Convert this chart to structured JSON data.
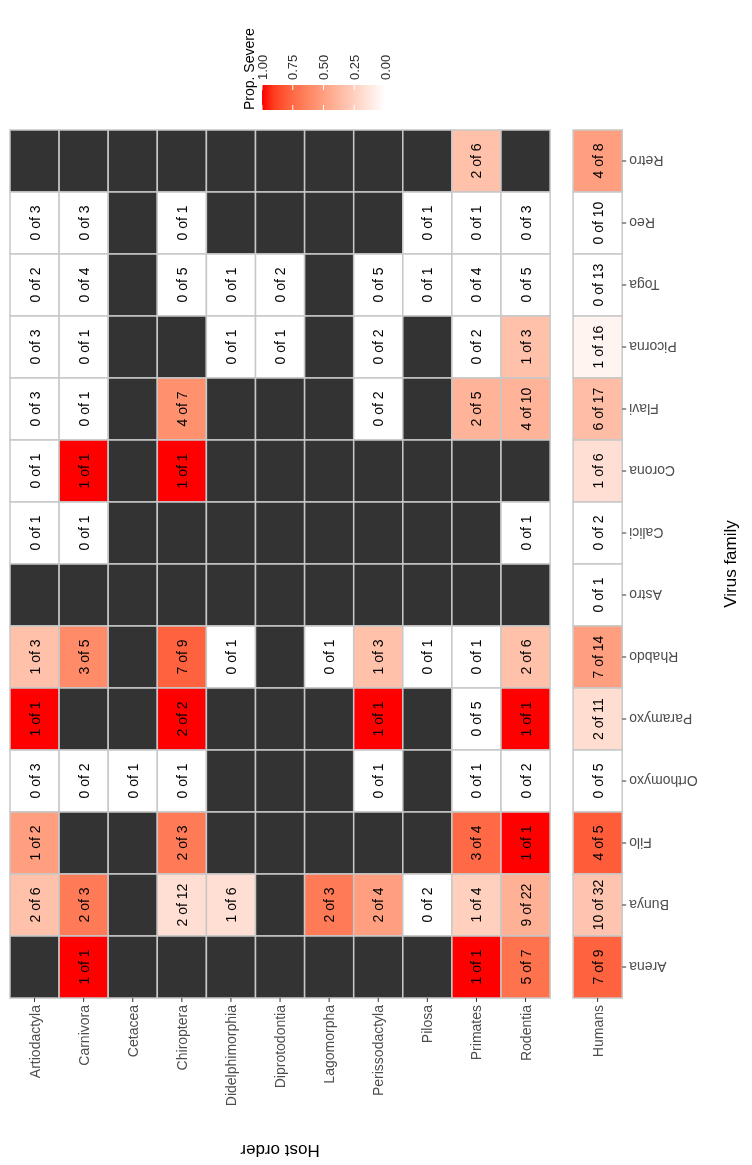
{
  "chart_data": {
    "type": "heatmap",
    "xlabel": "Host order",
    "ylabel": "Virus family",
    "clabel": "Prop. Severe",
    "clim": [
      0,
      1
    ],
    "cticks": [
      {
        "value": 0,
        "label": "0.00"
      },
      {
        "value": 0.25,
        "label": "0.25"
      },
      {
        "value": 0.5,
        "label": "0.50"
      },
      {
        "value": 0.75,
        "label": "0.75"
      },
      {
        "value": 1,
        "label": "1.00"
      }
    ],
    "categories": [
      "Artiodactyla",
      "Carnivora",
      "Cetacea",
      "Chiroptera",
      "Didelphimorphia",
      "Diprotodontia",
      "Lagomorpha",
      "Perissodactyla",
      "Pilosa",
      "Primates",
      "Rodentia",
      "Humans"
    ],
    "y_categories": [
      "Retro",
      "Reo",
      "Toga",
      "Picorna",
      "Flavi",
      "Corona",
      "Calici",
      "Astro",
      "Rhabdo",
      "Paramyxo",
      "Orthomyxo",
      "Filo",
      "Bunya",
      "Arena"
    ],
    "cells": [
      [
        null,
        null,
        null,
        null,
        null,
        null,
        null,
        null,
        null,
        0.33,
        null,
        0.5
      ],
      [
        0,
        0,
        null,
        0,
        null,
        null,
        null,
        null,
        0,
        0,
        0,
        0
      ],
      [
        0,
        0,
        null,
        0,
        0,
        0,
        null,
        0,
        0,
        0,
        0,
        0
      ],
      [
        0,
        0,
        null,
        null,
        0,
        0,
        null,
        0,
        null,
        0,
        0.33,
        0.06
      ],
      [
        0,
        0,
        null,
        0.57,
        null,
        null,
        null,
        0,
        null,
        0.4,
        0.4,
        0.35
      ],
      [
        0,
        1,
        null,
        1,
        null,
        null,
        null,
        null,
        null,
        null,
        null,
        0.17
      ],
      [
        0,
        0,
        null,
        null,
        null,
        null,
        null,
        null,
        null,
        null,
        0,
        0
      ],
      [
        null,
        null,
        null,
        null,
        null,
        null,
        null,
        null,
        null,
        null,
        null,
        0
      ],
      [
        0.33,
        0.6,
        null,
        0.78,
        0,
        null,
        0,
        0.33,
        0,
        0,
        0.33,
        0.5
      ],
      [
        1,
        null,
        null,
        1,
        null,
        null,
        null,
        1,
        null,
        0,
        1,
        0.18
      ],
      [
        0,
        0,
        0,
        0,
        null,
        null,
        null,
        0,
        null,
        0,
        0,
        0
      ],
      [
        0.5,
        null,
        null,
        0.67,
        null,
        null,
        null,
        null,
        null,
        0.75,
        1,
        0.8
      ],
      [
        0.33,
        0.67,
        null,
        0.17,
        0.17,
        null,
        0.67,
        0.5,
        0,
        0.25,
        0.41,
        0.31
      ],
      [
        null,
        1,
        null,
        null,
        null,
        null,
        null,
        null,
        null,
        1,
        0.71,
        0.78
      ]
    ],
    "cell_labels": [
      [
        null,
        null,
        null,
        null,
        null,
        null,
        null,
        null,
        null,
        "2 of 6",
        null,
        "4 of 8"
      ],
      [
        "0 of 3",
        "0 of 3",
        null,
        "0 of 1",
        null,
        null,
        null,
        null,
        "0 of 1",
        "0 of 1",
        "0 of 3",
        "0 of 10"
      ],
      [
        "0 of 2",
        "0 of 4",
        null,
        "0 of 5",
        "0 of 1",
        "0 of 2",
        null,
        "0 of 5",
        "0 of 1",
        "0 of 4",
        "0 of 5",
        "0 of 13"
      ],
      [
        "0 of 3",
        "0 of 1",
        null,
        null,
        "0 of 1",
        "0 of 1",
        null,
        "0 of 2",
        null,
        "0 of 2",
        "1 of 3",
        "1 of 16"
      ],
      [
        "0 of 3",
        "0 of 1",
        null,
        "4 of 7",
        null,
        null,
        null,
        "0 of 2",
        null,
        "2 of 5",
        "4 of 10",
        "6 of 17"
      ],
      [
        "0 of 1",
        "1 of 1",
        null,
        "1 of 1",
        null,
        null,
        null,
        null,
        null,
        null,
        null,
        "1 of 6"
      ],
      [
        "0 of 1",
        "0 of 1",
        null,
        null,
        null,
        null,
        null,
        null,
        null,
        null,
        "0 of 1",
        "0 of 2"
      ],
      [
        null,
        null,
        null,
        null,
        null,
        null,
        null,
        null,
        null,
        null,
        null,
        "0 of 1"
      ],
      [
        "1 of 3",
        "3 of 5",
        null,
        "7 of 9",
        "0 of 1",
        null,
        "0 of 1",
        "1 of 3",
        "0 of 1",
        "0 of 1",
        "2 of 6",
        "7 of 14"
      ],
      [
        "1 of 1",
        null,
        null,
        "2 of 2",
        null,
        null,
        null,
        "1 of 1",
        null,
        "0 of 5",
        "1 of 1",
        "2 of 11"
      ],
      [
        "0 of 3",
        "0 of 2",
        "0 of 1",
        "0 of 1",
        null,
        null,
        null,
        "0 of 1",
        null,
        "0 of 1",
        "0 of 2",
        "0 of 5"
      ],
      [
        "1 of 2",
        null,
        null,
        "2 of 3",
        null,
        null,
        null,
        null,
        null,
        "3 of 4",
        "1 of 1",
        "4 of 5"
      ],
      [
        "2 of 6",
        "2 of 3",
        null,
        "2 of 12",
        "1 of 6",
        null,
        "2 of 3",
        "2 of 4",
        "0 of 2",
        "1 of 4",
        "9 of 22",
        "10 of 32"
      ],
      [
        null,
        "1 of 1",
        null,
        null,
        null,
        null,
        null,
        null,
        null,
        "1 of 1",
        "5 of 7",
        "7 of 9"
      ]
    ]
  }
}
